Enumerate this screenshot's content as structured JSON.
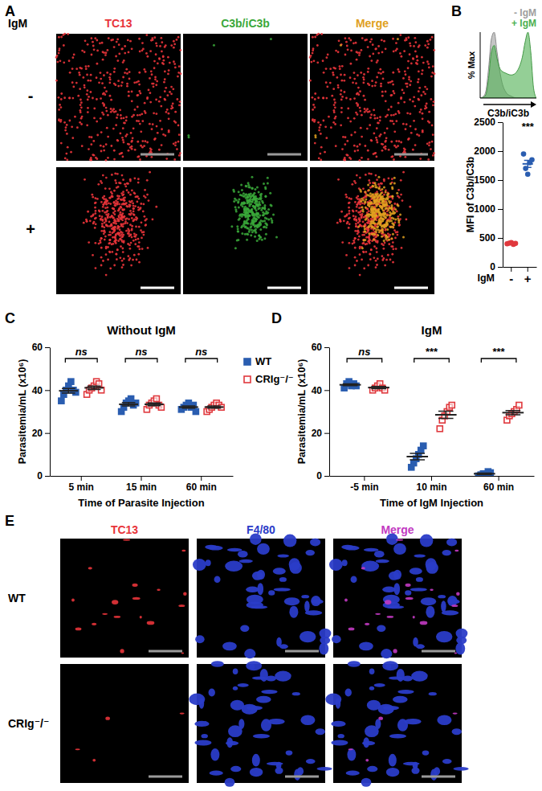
{
  "chart_data": [
    {
      "type": "area",
      "x_label": "C3b/iC3b",
      "y_label": "% Max",
      "x": [
        0,
        5,
        10,
        15,
        20,
        25,
        30,
        35,
        40,
        45,
        50,
        55,
        60,
        65,
        70,
        75,
        80,
        85,
        90,
        95,
        100
      ],
      "xlim": [
        0,
        100
      ],
      "ylim": [
        0,
        100
      ],
      "tick_labels": false,
      "legend": "top-right",
      "series": [
        {
          "name": "- IgM",
          "color": "#9e9e9e",
          "values": [
            0,
            2,
            10,
            45,
            90,
            100,
            70,
            40,
            20,
            10,
            5,
            3,
            1,
            0,
            0,
            0,
            0,
            0,
            0,
            0,
            0
          ]
        },
        {
          "name": "+ IgM",
          "color": "#4caf50",
          "values": [
            0,
            1,
            5,
            30,
            70,
            80,
            60,
            45,
            40,
            38,
            36,
            35,
            36,
            40,
            48,
            62,
            85,
            100,
            70,
            15,
            0
          ]
        }
      ]
    },
    {
      "type": "dot",
      "y_label": "MFI of C3b/iC3b",
      "x_label": "IgM",
      "categories": [
        "-",
        "+"
      ],
      "ylim": [
        0,
        2500
      ],
      "yticks": [
        0,
        500,
        1000,
        1500,
        2000,
        2500
      ],
      "marker": "circle",
      "colors": [
        "#e0393e",
        "#2a5db0"
      ],
      "values": [
        [
          400,
          410,
          420,
          390,
          405
        ],
        [
          1950,
          1700,
          1600,
          1800,
          1850
        ]
      ],
      "mean": [
        405,
        1780
      ],
      "sem": [
        5,
        60
      ],
      "annotations": [
        {
          "text": "***",
          "category": 1
        }
      ]
    },
    {
      "type": "dot",
      "title": "Without IgM",
      "y_label": "Parasitemia/mL (x10⁶)",
      "x_label": "Time of Parasite Injection",
      "categories": [
        "5 min",
        "15 min",
        "60 min"
      ],
      "ylim": [
        0,
        60
      ],
      "yticks": [
        0,
        20,
        40,
        60
      ],
      "legend": "right",
      "series": [
        {
          "name": "WT",
          "color": "#2a5db0",
          "marker": "square",
          "values": [
            [
              35,
              38,
              40,
              42,
              44,
              40,
              39
            ],
            [
              30,
              32,
              34,
              35,
              36,
              33,
              34
            ],
            [
              31,
              32,
              33,
              34,
              32,
              33,
              30
            ]
          ],
          "mean": [
            39.7,
            33.4,
            32.1
          ],
          "sem": [
            1.1,
            0.8,
            0.5
          ]
        },
        {
          "name": "CRIg⁻/⁻",
          "color": "#e0393e",
          "marker": "open-square",
          "values": [
            [
              38,
              40,
              41,
              42,
              44,
              43,
              40
            ],
            [
              31,
              33,
              34,
              35,
              36,
              33,
              32
            ],
            [
              30,
              31,
              32,
              33,
              34,
              33,
              32
            ]
          ],
          "mean": [
            41.1,
            33.4,
            32.1
          ],
          "sem": [
            0.8,
            0.65,
            0.5
          ]
        }
      ],
      "annotations": [
        {
          "text": "ns",
          "category": 0
        },
        {
          "text": "ns",
          "category": 1
        },
        {
          "text": "ns",
          "category": 2
        }
      ]
    },
    {
      "type": "dot",
      "title": "IgM",
      "y_label": "Parasitemia/mL (x10⁶)",
      "x_label": "Time of IgM Injection",
      "categories": [
        "-5 min",
        "10 min",
        "60 min"
      ],
      "ylim": [
        0,
        60
      ],
      "yticks": [
        0,
        20,
        40,
        60
      ],
      "series": [
        {
          "name": "WT",
          "color": "#2a5db0",
          "marker": "square",
          "values": [
            [
              41,
              43,
              44,
              42,
              43,
              42
            ],
            [
              4,
              6,
              8,
              10,
              12,
              14
            ],
            [
              0,
              0.5,
              1,
              1,
              2,
              1.5
            ]
          ],
          "mean": [
            42.5,
            9,
            1
          ],
          "sem": [
            0.4,
            1.5,
            0.3
          ]
        },
        {
          "name": "CRIg⁻/⁻",
          "color": "#e0393e",
          "marker": "open-square",
          "values": [
            [
              40,
              41,
              42,
              43,
              41,
              40
            ],
            [
              22,
              26,
              28,
              30,
              32,
              33
            ],
            [
              26,
              28,
              29,
              30,
              31,
              33
            ]
          ],
          "mean": [
            41.2,
            28.5,
            29.5
          ],
          "sem": [
            0.5,
            1.7,
            1
          ]
        }
      ],
      "annotations": [
        {
          "text": "ns",
          "category": 0
        },
        {
          "text": "***",
          "category": 1
        },
        {
          "text": "***",
          "category": 2
        }
      ]
    }
  ],
  "panel_letters": [
    "A",
    "B",
    "C",
    "D",
    "E"
  ],
  "images": [
    {
      "row_header": "IgM",
      "columns": [
        {
          "label": "TC13",
          "color": "#e8343a"
        },
        {
          "label": "C3b/iC3b",
          "color": "#3aa83a"
        },
        {
          "label": "Merge",
          "color": "#e0a020"
        }
      ],
      "rows": [
        "-",
        "+"
      ]
    },
    {
      "columns": [
        {
          "label": "TC13",
          "color": "#e8343a"
        },
        {
          "label": "F4/80",
          "color": "#2a3cc8"
        },
        {
          "label": "Merge",
          "color": "#c23ac2"
        }
      ],
      "rows": [
        "WT",
        "CRIg⁻/⁻"
      ]
    }
  ]
}
